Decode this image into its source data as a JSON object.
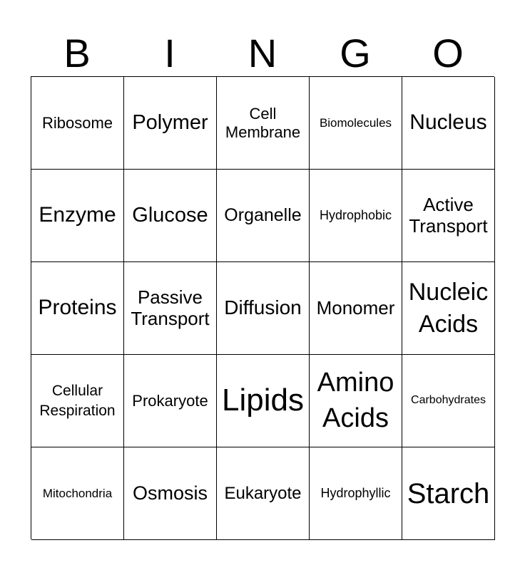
{
  "header": [
    "B",
    "I",
    "N",
    "G",
    "O"
  ],
  "cells": [
    "Ribosome",
    "Polymer",
    "Cell\nMembrane",
    "Biomolecules",
    "Nucleus",
    "Enzyme",
    "Glucose",
    "Organelle",
    "Hydrophobic",
    "Active\nTransport",
    "Proteins",
    "Passive\nTransport",
    "Diffusion",
    "Monomer",
    "Nucleic\nAcids",
    "Cellular\nRespiration",
    "Prokaryote",
    "Lipids",
    "Amino\nAcids",
    "Carbohydrates",
    "Mitochondria",
    "Osmosis",
    "Eukaryote",
    "Hydrophyllic",
    "Starch"
  ]
}
